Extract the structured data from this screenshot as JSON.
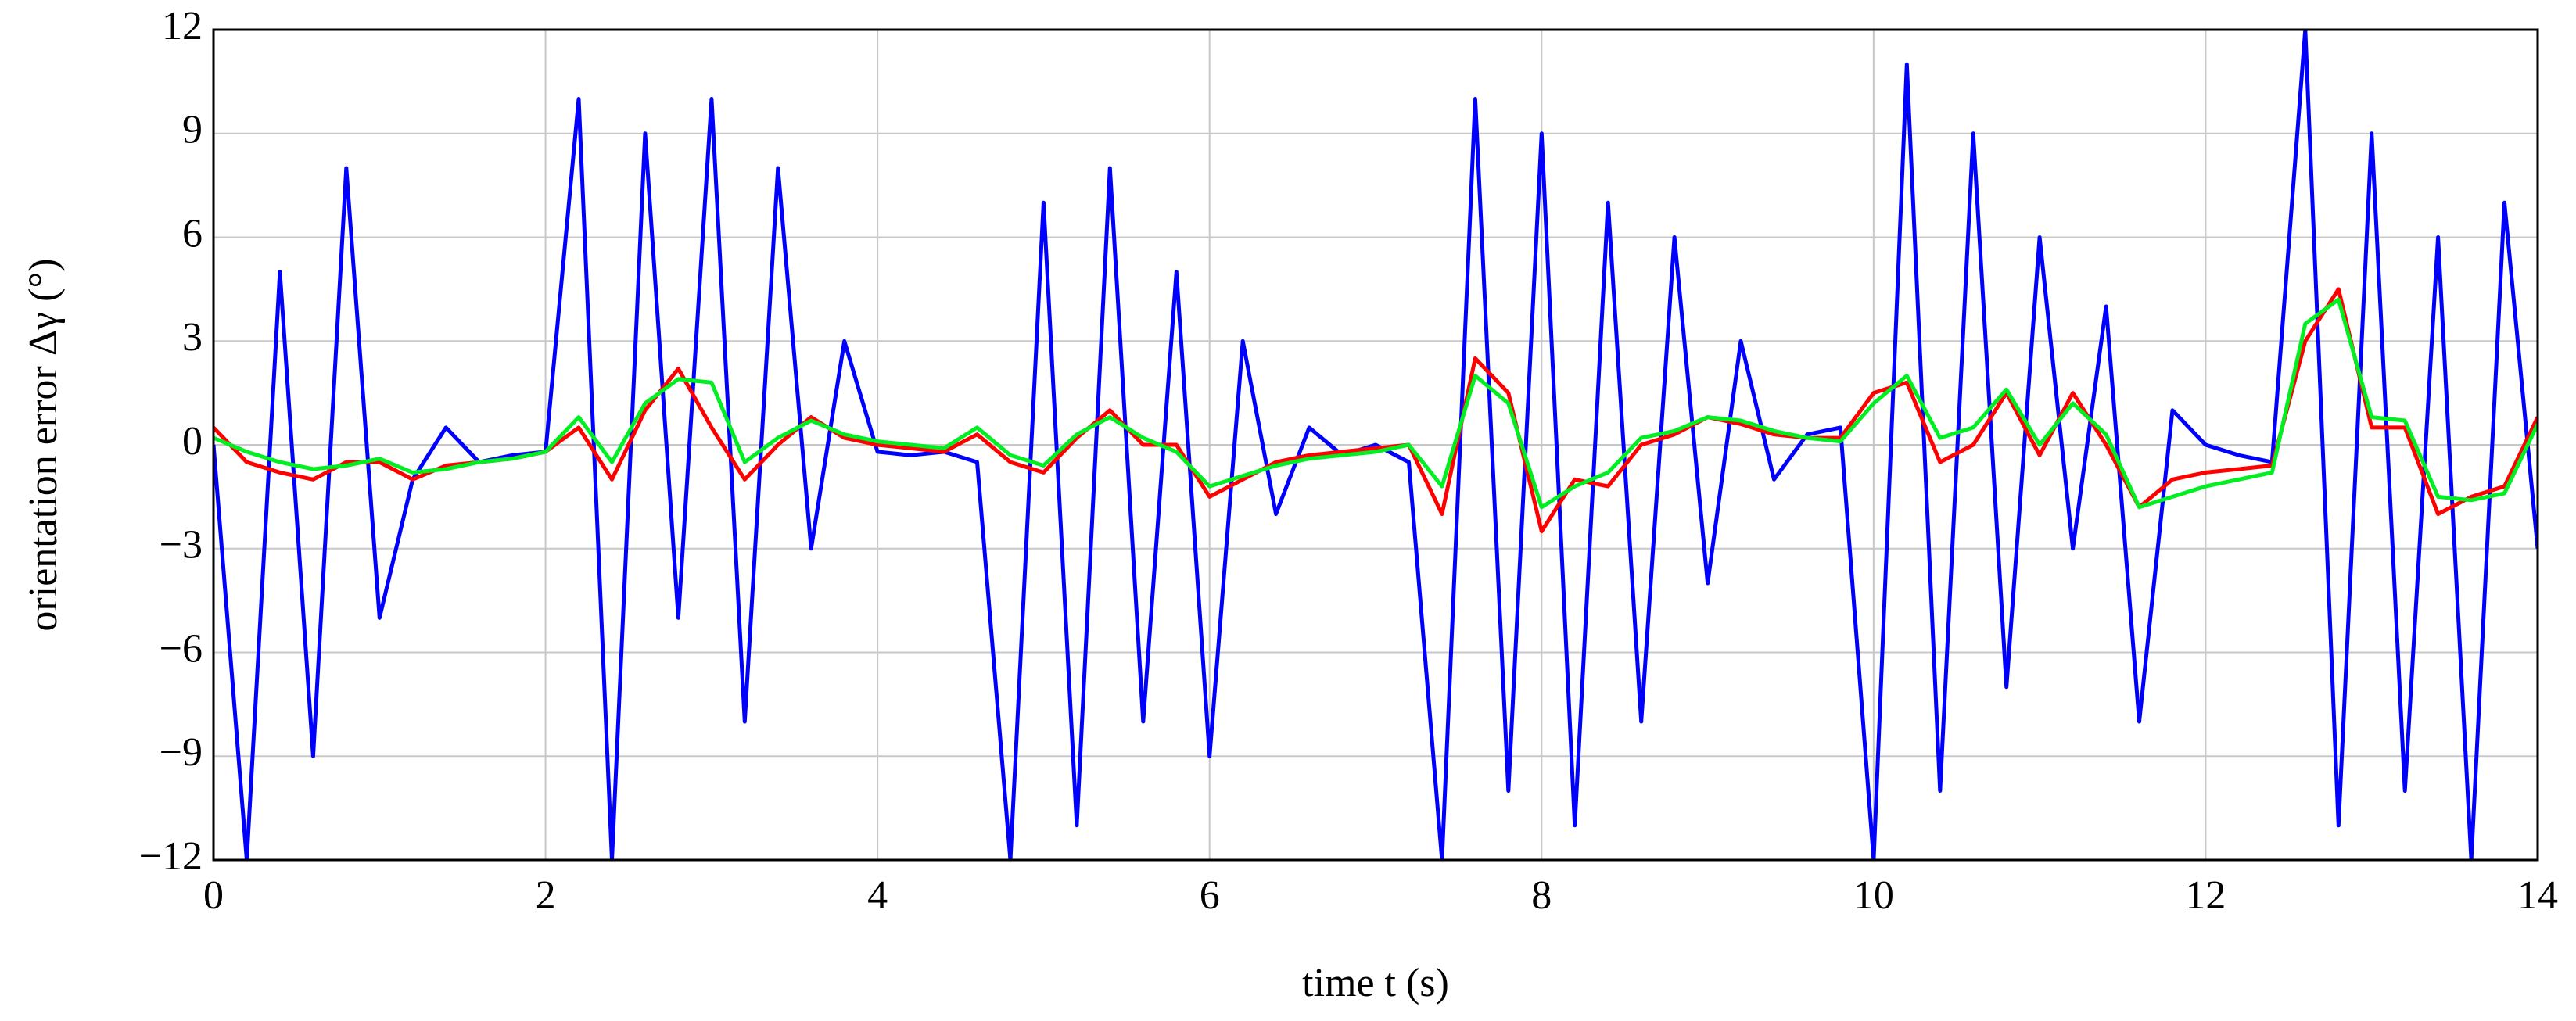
{
  "chart_data": {
    "type": "line",
    "xlabel": "time t (s)",
    "ylabel": "orientation error Δγ (°)",
    "x": [
      0,
      0.2,
      0.4,
      0.6,
      0.8,
      1.0,
      1.2,
      1.4,
      1.6,
      1.8,
      2.0,
      2.2,
      2.4,
      2.6,
      2.8,
      3.0,
      3.2,
      3.4,
      3.6,
      3.8,
      4.0,
      4.2,
      4.4,
      4.6,
      4.8,
      5.0,
      5.2,
      5.4,
      5.6,
      5.8,
      6.0,
      6.2,
      6.4,
      6.6,
      6.8,
      7.0,
      7.2,
      7.4,
      7.6,
      7.8,
      8.0,
      8.2,
      8.4,
      8.6,
      8.8,
      9.0,
      9.2,
      9.4,
      9.6,
      9.8,
      10.0,
      10.2,
      10.4,
      10.6,
      10.8,
      11.0,
      11.2,
      11.4,
      11.6,
      11.8,
      12.0,
      12.2,
      12.4,
      12.6,
      12.8,
      13.0,
      13.2,
      13.4,
      13.6,
      13.8,
      14.0
    ],
    "series": [
      {
        "color": "#0000ff",
        "values": [
          0,
          -12,
          5,
          -9,
          8,
          -5,
          -1,
          0.5,
          -0.5,
          -0.3,
          -0.2,
          10,
          -12,
          9,
          -5,
          10,
          -8,
          8,
          -3,
          3,
          -0.2,
          -0.3,
          -0.2,
          -0.5,
          -12,
          7,
          -11,
          8,
          -8,
          5,
          -9,
          3,
          -2,
          0.5,
          -0.3,
          0,
          -0.5,
          -12,
          10,
          -10,
          9,
          -11,
          7,
          -8,
          6,
          -4,
          3,
          -1,
          0.3,
          0.5,
          -12,
          11,
          -10,
          9,
          -7,
          6,
          -3,
          4,
          -8,
          1,
          0,
          -0.3,
          -0.5,
          12,
          -11,
          9,
          -10,
          6,
          -12,
          7,
          -3
        ]
      },
      {
        "color": "#ff0000",
        "values": [
          0.5,
          -0.5,
          -0.8,
          -1,
          -0.5,
          -0.5,
          -1,
          -0.6,
          -0.5,
          -0.4,
          -0.2,
          0.5,
          -1,
          1,
          2.2,
          0.5,
          -1,
          0,
          0.8,
          0.2,
          0,
          -0.1,
          -0.2,
          0.3,
          -0.5,
          -0.8,
          0.2,
          1,
          0,
          0,
          -1.5,
          -1,
          -0.5,
          -0.3,
          -0.2,
          -0.1,
          0,
          -2,
          2.5,
          1.5,
          -2.5,
          -1,
          -1.2,
          0,
          0.3,
          0.8,
          0.6,
          0.3,
          0.2,
          0.2,
          1.5,
          1.8,
          -0.5,
          0,
          1.5,
          -0.3,
          1.5,
          0,
          -1.8,
          -1,
          -0.8,
          -0.7,
          -0.6,
          3,
          4.5,
          0.5,
          0.5,
          -2,
          -1.5,
          -1.2,
          0.8
        ]
      },
      {
        "color": "#00ee22",
        "values": [
          0.2,
          -0.2,
          -0.5,
          -0.7,
          -0.6,
          -0.4,
          -0.8,
          -0.7,
          -0.5,
          -0.4,
          -0.2,
          0.8,
          -0.5,
          1.2,
          1.9,
          1.8,
          -0.5,
          0.2,
          0.7,
          0.3,
          0.1,
          0,
          -0.1,
          0.5,
          -0.3,
          -0.6,
          0.3,
          0.8,
          0.2,
          -0.2,
          -1.2,
          -0.9,
          -0.6,
          -0.4,
          -0.3,
          -0.2,
          0,
          -1.2,
          2,
          1.2,
          -1.8,
          -1.2,
          -0.8,
          0.2,
          0.4,
          0.8,
          0.7,
          0.4,
          0.2,
          0.1,
          1.2,
          2,
          0.2,
          0.5,
          1.6,
          0,
          1.2,
          0.3,
          -1.8,
          -1.5,
          -1.2,
          -1,
          -0.8,
          3.5,
          4.2,
          0.8,
          0.7,
          -1.5,
          -1.6,
          -1.4,
          0.6
        ]
      }
    ],
    "xlim": [
      0,
      14
    ],
    "xticks": [
      0,
      2,
      4,
      6,
      8,
      10,
      12,
      14
    ],
    "ylim": [
      -12,
      12
    ],
    "yticks": [
      {
        "value": -12,
        "label": "−12"
      },
      {
        "value": -9,
        "label": "−9"
      },
      {
        "value": -6,
        "label": "−6"
      },
      {
        "value": -3,
        "label": "−3"
      },
      0,
      3,
      6,
      9,
      12
    ],
    "grid": true
  }
}
